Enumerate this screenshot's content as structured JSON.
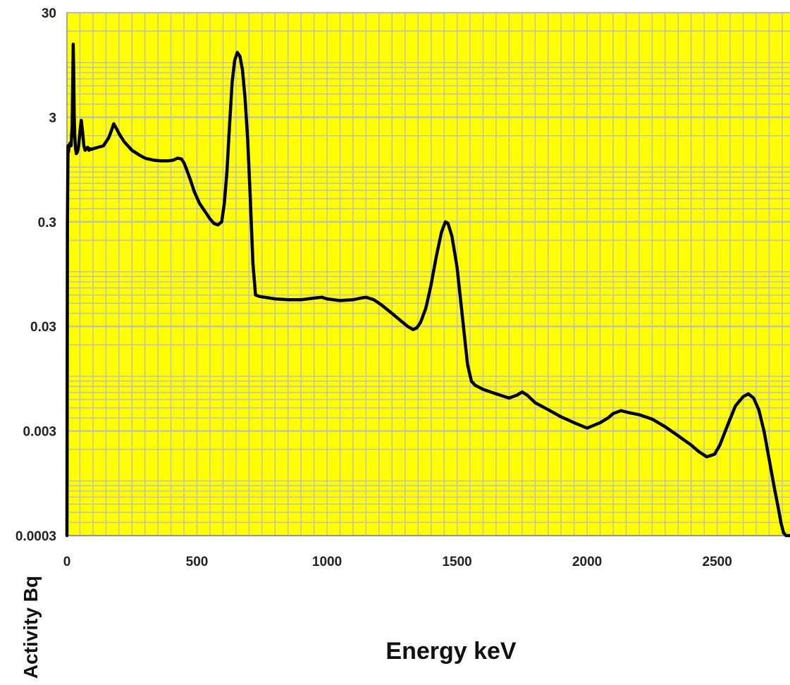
{
  "chart_data": {
    "type": "line",
    "title": "",
    "xlabel": "Energy keV",
    "ylabel": "Activity Bq",
    "xscale": "linear",
    "yscale": "log",
    "xlim": [
      0,
      2780
    ],
    "ylim": [
      0.0003,
      30
    ],
    "xticks": [
      0,
      500,
      1000,
      1500,
      2000,
      2500
    ],
    "xtick_labels": [
      "0",
      "500",
      "1000",
      "1500",
      "2000",
      "2500"
    ],
    "yticks": [
      30,
      3,
      0.3,
      0.03,
      0.003,
      0.0003
    ],
    "ytick_labels": [
      "30",
      "3",
      "0.3",
      "0.03",
      "0.003",
      "0.0003"
    ],
    "grid": true,
    "legend": "none",
    "colors": {
      "plot_background": "#ffff00",
      "grid": "#bdbdbd",
      "line": "#000000"
    },
    "series": [
      {
        "x": [
          0,
          2,
          4,
          6,
          8,
          12,
          16,
          20,
          24,
          26,
          28,
          30,
          33,
          36,
          40,
          45,
          50,
          55,
          60,
          65,
          70,
          75,
          80,
          85,
          90,
          95,
          100,
          120,
          140,
          160,
          170,
          180,
          190,
          200,
          220,
          250,
          280,
          300,
          330,
          360,
          390,
          410,
          425,
          440,
          450,
          460,
          475,
          490,
          510,
          530,
          550,
          565,
          580,
          595,
          605,
          615,
          625,
          635,
          645,
          655,
          665,
          675,
          685,
          695,
          705,
          715,
          725,
          740,
          760,
          800,
          850,
          900,
          950,
          980,
          1000,
          1050,
          1100,
          1130,
          1150,
          1180,
          1210,
          1250,
          1290,
          1310,
          1330,
          1345,
          1360,
          1380,
          1400,
          1420,
          1440,
          1455,
          1465,
          1480,
          1500,
          1520,
          1540,
          1555,
          1570,
          1600,
          1650,
          1700,
          1730,
          1750,
          1770,
          1800,
          1850,
          1900,
          1950,
          2000,
          2050,
          2080,
          2100,
          2130,
          2160,
          2200,
          2250,
          2300,
          2350,
          2400,
          2430,
          2460,
          2490,
          2510,
          2540,
          2570,
          2600,
          2620,
          2640,
          2660,
          2680,
          2700,
          2720,
          2735,
          2745,
          2755,
          2765,
          2780
        ],
        "y": [
          0.0003,
          0.3,
          1.6,
          1.4,
          1.6,
          1.7,
          1.6,
          2.5,
          15,
          8,
          3,
          2.0,
          1.5,
          1.35,
          1.4,
          1.6,
          2.2,
          2.8,
          2.2,
          1.6,
          1.45,
          1.5,
          1.55,
          1.45,
          1.5,
          1.48,
          1.5,
          1.55,
          1.6,
          1.9,
          2.2,
          2.6,
          2.35,
          2.1,
          1.75,
          1.45,
          1.3,
          1.22,
          1.17,
          1.15,
          1.15,
          1.17,
          1.22,
          1.2,
          1.1,
          0.95,
          0.75,
          0.58,
          0.45,
          0.38,
          0.32,
          0.29,
          0.28,
          0.3,
          0.45,
          0.9,
          2.5,
          6.5,
          10.5,
          12.5,
          11.5,
          8.5,
          4.5,
          1.8,
          0.5,
          0.12,
          0.06,
          0.058,
          0.057,
          0.055,
          0.054,
          0.054,
          0.056,
          0.057,
          0.055,
          0.053,
          0.054,
          0.056,
          0.057,
          0.054,
          0.048,
          0.04,
          0.033,
          0.03,
          0.028,
          0.029,
          0.033,
          0.045,
          0.075,
          0.14,
          0.24,
          0.3,
          0.29,
          0.22,
          0.11,
          0.038,
          0.013,
          0.009,
          0.0082,
          0.0075,
          0.0068,
          0.0062,
          0.0066,
          0.0071,
          0.0066,
          0.0056,
          0.0048,
          0.0041,
          0.0036,
          0.0032,
          0.0036,
          0.004,
          0.0044,
          0.0047,
          0.0045,
          0.0043,
          0.0039,
          0.0033,
          0.0027,
          0.0022,
          0.0019,
          0.0017,
          0.0018,
          0.0022,
          0.0034,
          0.0052,
          0.0064,
          0.0068,
          0.0062,
          0.0048,
          0.003,
          0.0016,
          0.00085,
          0.00055,
          0.0004,
          0.00032,
          0.0003,
          0.0003
        ]
      }
    ]
  }
}
